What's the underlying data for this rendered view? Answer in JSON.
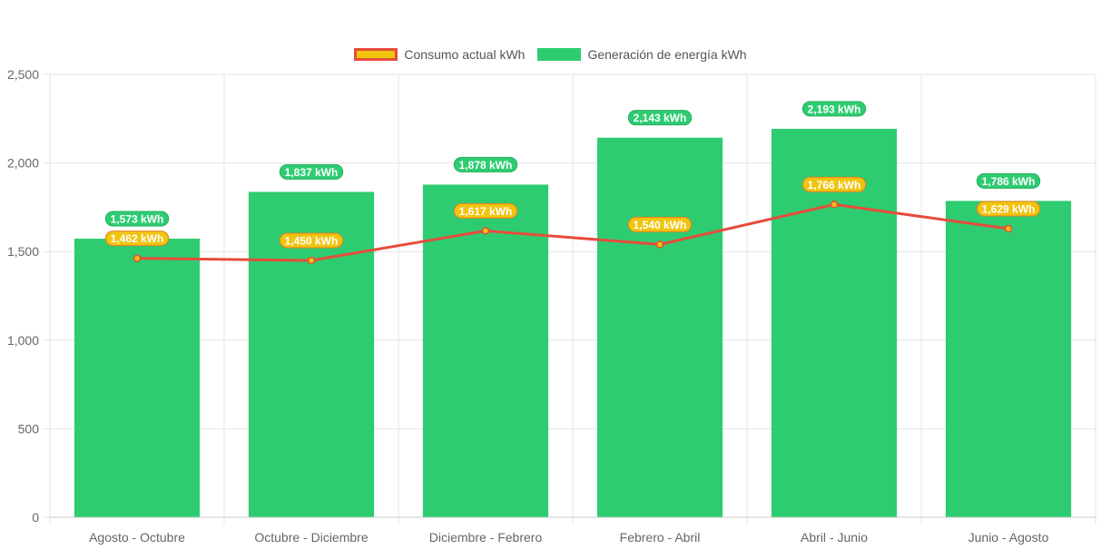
{
  "chart_data": {
    "type": "bar",
    "categories": [
      "Agosto - Octubre",
      "Octubre - Diciembre",
      "Diciembre - Febrero",
      "Febrero - Abril",
      "Abril - Junio",
      "Junio - Agosto"
    ],
    "series": [
      {
        "name": "Consumo actual kWh",
        "type": "line",
        "values": [
          1462,
          1450,
          1617,
          1540,
          1766,
          1629
        ],
        "data_labels": [
          "1,462 kWh",
          "1,450 kWh",
          "1,617 kWh",
          "1,540 kWh",
          "1,766 kWh",
          "1,629 kWh"
        ],
        "line_color": "#e74c3c",
        "fill_color": "#f1c40f"
      },
      {
        "name": "Generación de energía kWh",
        "type": "bar",
        "values": [
          1573,
          1837,
          1878,
          2143,
          2193,
          1786
        ],
        "data_labels": [
          "1,573 kWh",
          "1,837 kWh",
          "1,878 kWh",
          "2,143 kWh",
          "2,193 kWh",
          "1,786 kWh"
        ],
        "color": "#2ecc71"
      }
    ],
    "y_ticks": [
      "0",
      "500",
      "1,000",
      "1,500",
      "2,000",
      "2,500"
    ],
    "ylim": [
      0,
      2500
    ],
    "grid": true,
    "legend_position": "top-center",
    "colors": {
      "bar": "#2ecc71",
      "line": "#e74c3c",
      "point": "#f1c40f",
      "grid": "#e5e5e5",
      "tick_text": "#666666"
    }
  }
}
